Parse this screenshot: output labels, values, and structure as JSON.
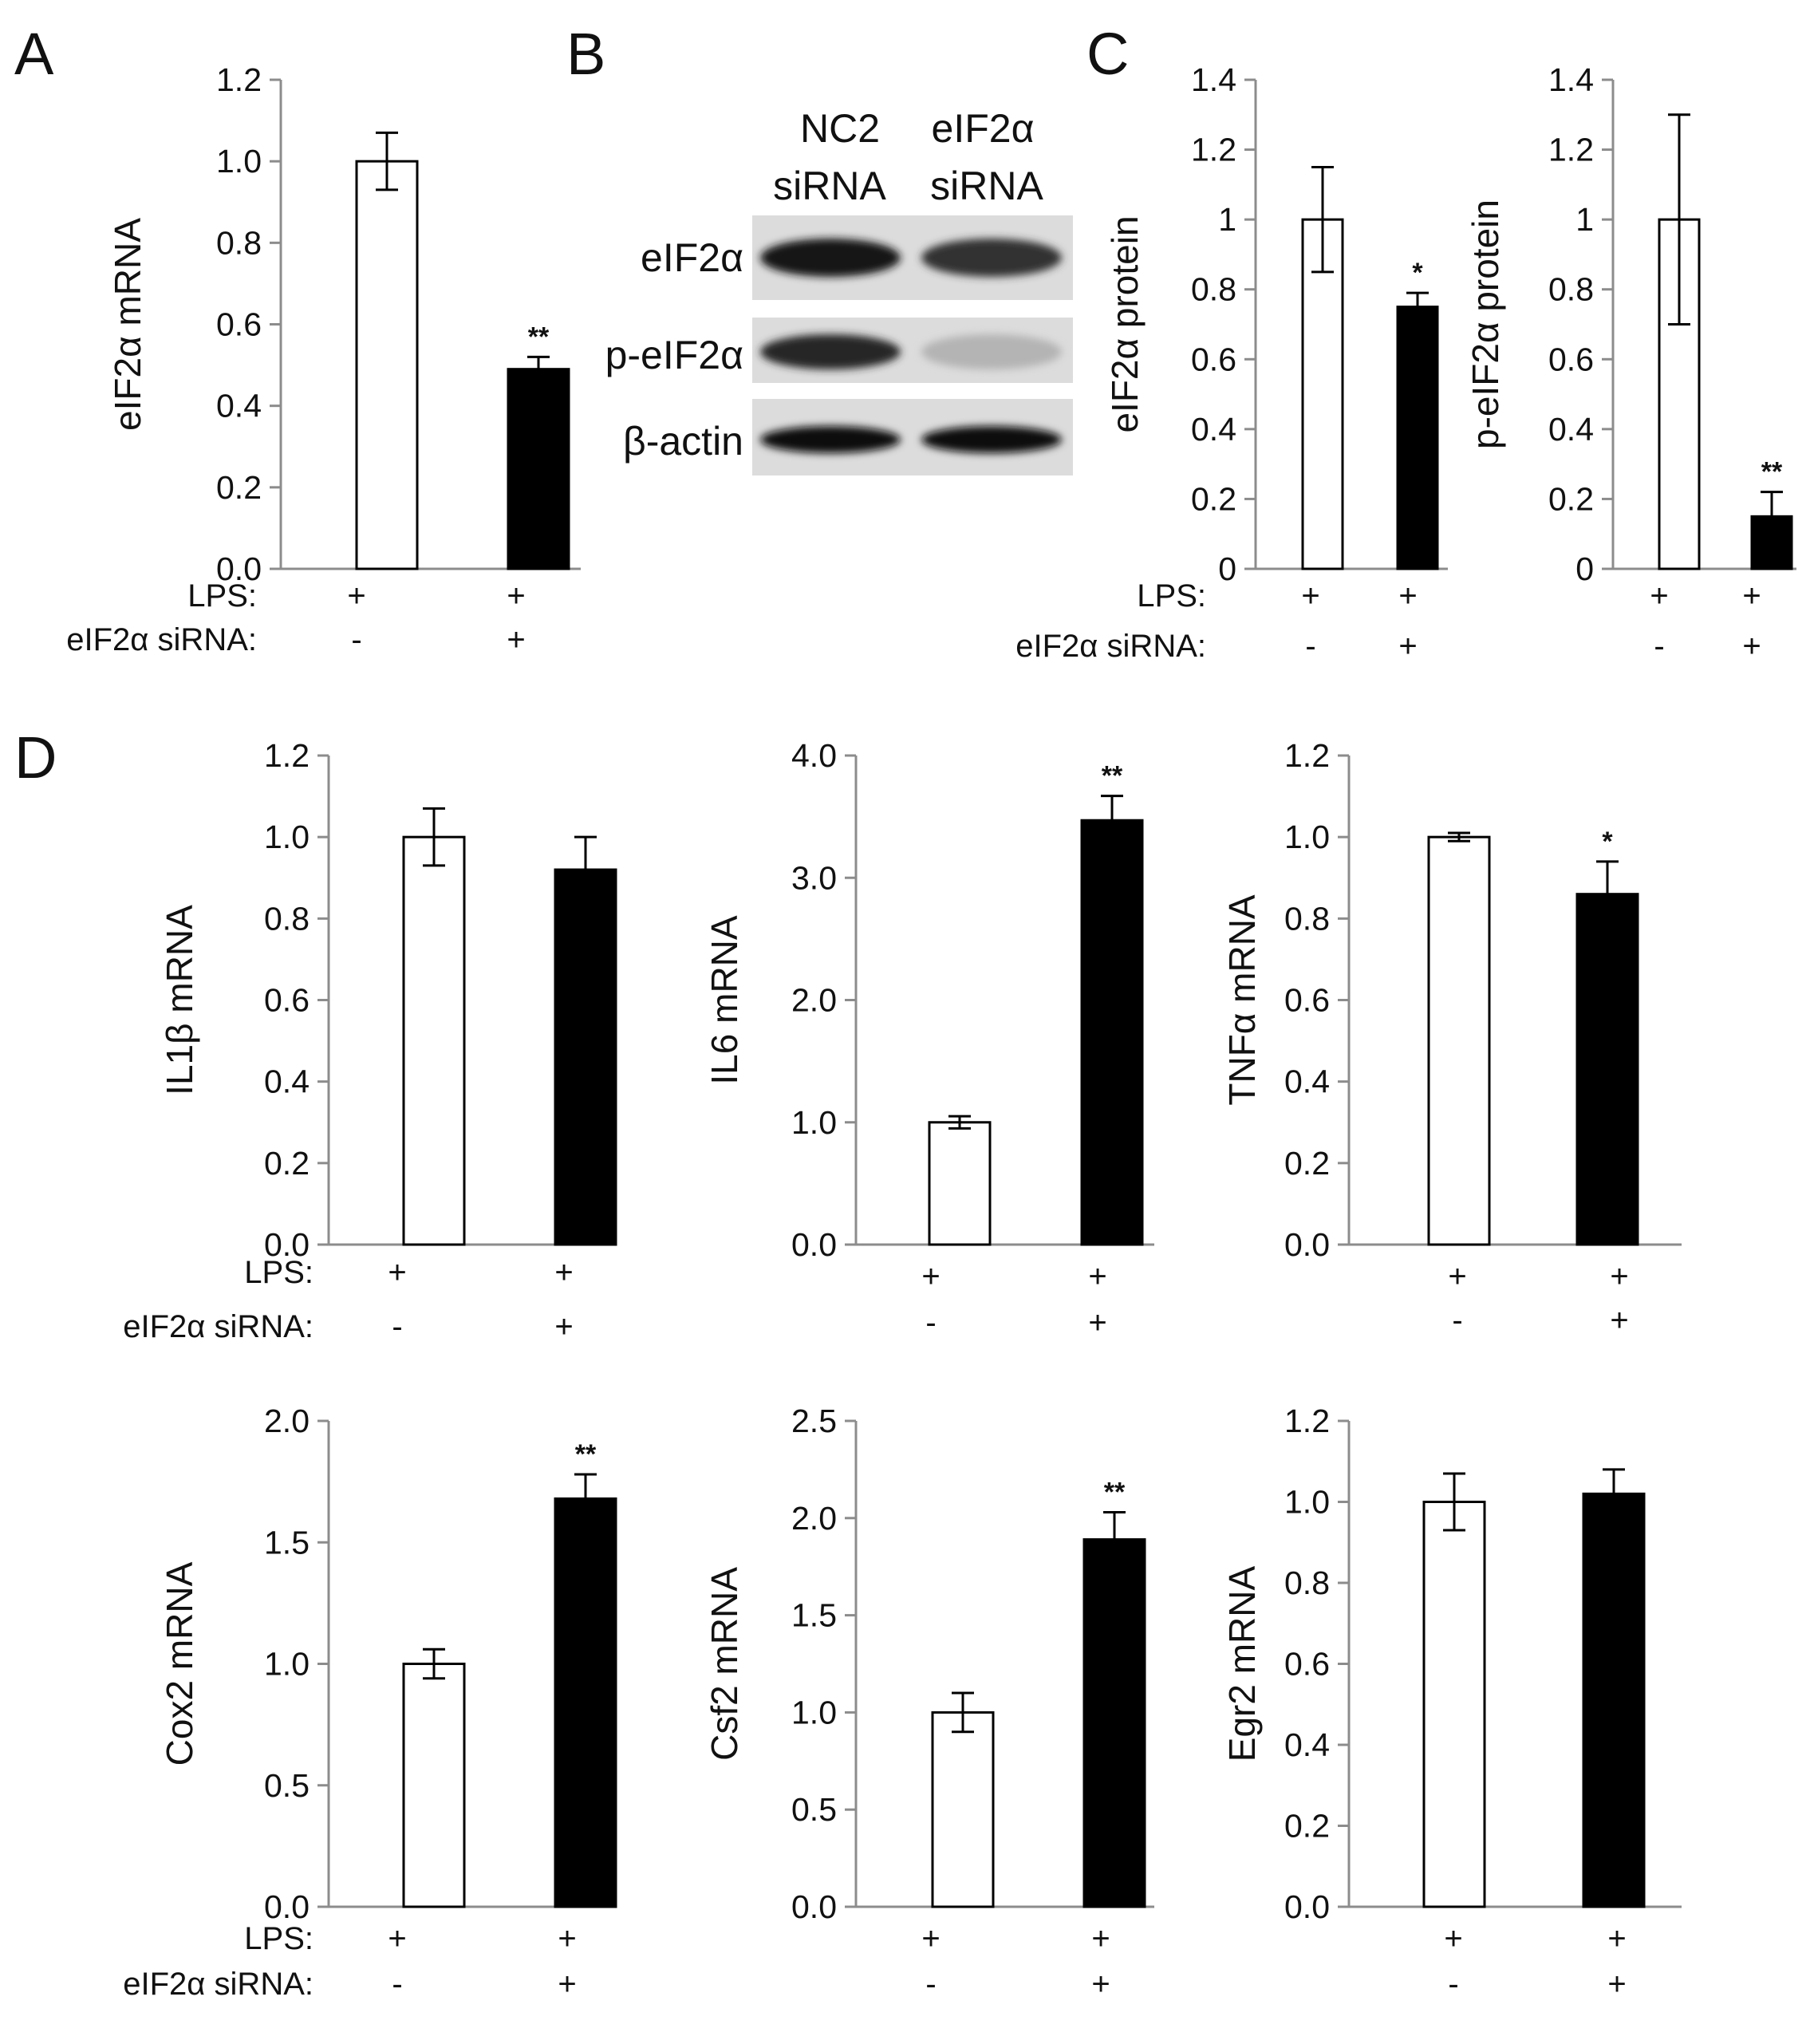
{
  "colors": {
    "control_bar": "#ffffff",
    "sirna_bar": "#000000",
    "axis": "#8c8c8c",
    "text": "#111111"
  },
  "panel_letters": [
    "A",
    "B",
    "C",
    "D"
  ],
  "chart_data": [
    {
      "id": "A",
      "type": "bar",
      "ylabel": "eIF2α mRNA",
      "yticks": [
        "0.0",
        "0.2",
        "0.4",
        "0.6",
        "0.8",
        "1.0",
        "1.2"
      ],
      "ylim": [
        0,
        1.2
      ],
      "values": [
        1.0,
        0.49
      ],
      "errors": [
        0.07,
        0.03
      ],
      "significance": [
        "",
        "**"
      ],
      "rows": [
        {
          "label": "LPS:",
          "marks": [
            "+",
            "+"
          ]
        },
        {
          "label": "eIF2α siRNA:",
          "marks": [
            "-",
            "+"
          ]
        }
      ]
    },
    {
      "id": "C1",
      "type": "bar",
      "ylabel": "eIF2α protein",
      "yticks": [
        "0",
        "0.2",
        "0.4",
        "0.6",
        "0.8",
        "1",
        "1.2",
        "1.4"
      ],
      "ylim": [
        0,
        1.4
      ],
      "values": [
        1.0,
        0.75
      ],
      "errors": [
        0.15,
        0.04
      ],
      "significance": [
        "",
        "*"
      ],
      "rows": [
        {
          "label": "LPS:",
          "marks": [
            "+",
            "+"
          ]
        },
        {
          "label": "eIF2α siRNA:",
          "marks": [
            "-",
            "+"
          ]
        }
      ]
    },
    {
      "id": "C2",
      "type": "bar",
      "ylabel": "p-eIF2α protein",
      "yticks": [
        "0",
        "0.2",
        "0.4",
        "0.6",
        "0.8",
        "1",
        "1.2",
        "1.4"
      ],
      "ylim": [
        0,
        1.4
      ],
      "values": [
        1.0,
        0.15
      ],
      "errors": [
        0.3,
        0.07
      ],
      "significance": [
        "",
        "**"
      ],
      "rows": [
        {
          "label": "",
          "marks": [
            "+",
            "+"
          ]
        },
        {
          "label": "",
          "marks": [
            "-",
            "+"
          ]
        }
      ]
    },
    {
      "id": "D1",
      "type": "bar",
      "ylabel": "IL1β mRNA",
      "yticks": [
        "0.0",
        "0.2",
        "0.4",
        "0.6",
        "0.8",
        "1.0",
        "1.2"
      ],
      "ylim": [
        0,
        1.2
      ],
      "values": [
        1.0,
        0.92
      ],
      "errors": [
        0.07,
        0.08
      ],
      "significance": [
        "",
        ""
      ],
      "rows": [
        {
          "label": "LPS:",
          "marks": [
            "+",
            "+"
          ]
        },
        {
          "label": "eIF2α siRNA:",
          "marks": [
            "-",
            "+"
          ]
        }
      ]
    },
    {
      "id": "D2",
      "type": "bar",
      "ylabel": "IL6 mRNA",
      "yticks": [
        "0.0",
        "1.0",
        "2.0",
        "3.0",
        "4.0"
      ],
      "ylim": [
        0,
        4.0
      ],
      "values": [
        1.0,
        3.47
      ],
      "errors": [
        0.05,
        0.2
      ],
      "significance": [
        "",
        "**"
      ],
      "rows": [
        {
          "label": "",
          "marks": [
            "+",
            "+"
          ]
        },
        {
          "label": "",
          "marks": [
            "-",
            "+"
          ]
        }
      ]
    },
    {
      "id": "D3",
      "type": "bar",
      "ylabel": "TNFα mRNA",
      "yticks": [
        "0.0",
        "0.2",
        "0.4",
        "0.6",
        "0.8",
        "1.0",
        "1.2"
      ],
      "ylim": [
        0,
        1.2
      ],
      "values": [
        1.0,
        0.86
      ],
      "errors": [
        0.01,
        0.08
      ],
      "significance": [
        "",
        "*"
      ],
      "rows": [
        {
          "label": "",
          "marks": [
            "+",
            "+"
          ]
        },
        {
          "label": "",
          "marks": [
            "-",
            "+"
          ]
        }
      ]
    },
    {
      "id": "D4",
      "type": "bar",
      "ylabel": "Cox2 mRNA",
      "yticks": [
        "0.0",
        "0.5",
        "1.0",
        "1.5",
        "2.0"
      ],
      "ylim": [
        0,
        2.0
      ],
      "values": [
        1.0,
        1.68
      ],
      "errors": [
        0.06,
        0.1
      ],
      "significance": [
        "",
        "**"
      ],
      "rows": [
        {
          "label": "LPS:",
          "marks": [
            "+",
            "+"
          ]
        },
        {
          "label": "eIF2α siRNA:",
          "marks": [
            "-",
            "+"
          ]
        }
      ]
    },
    {
      "id": "D5",
      "type": "bar",
      "ylabel": "Csf2 mRNA",
      "yticks": [
        "0.0",
        "0.5",
        "1.0",
        "1.5",
        "2.0",
        "2.5"
      ],
      "ylim": [
        0,
        2.5
      ],
      "values": [
        1.0,
        1.89
      ],
      "errors": [
        0.1,
        0.14
      ],
      "significance": [
        "",
        "**"
      ],
      "rows": [
        {
          "label": "",
          "marks": [
            "+",
            "+"
          ]
        },
        {
          "label": "",
          "marks": [
            "-",
            "+"
          ]
        }
      ]
    },
    {
      "id": "D6",
      "type": "bar",
      "ylabel": "Egr2 mRNA",
      "yticks": [
        "0.0",
        "0.2",
        "0.4",
        "0.6",
        "0.8",
        "1.0",
        "1.2"
      ],
      "ylim": [
        0,
        1.2
      ],
      "values": [
        1.0,
        1.02
      ],
      "errors": [
        0.07,
        0.06
      ],
      "significance": [
        "",
        ""
      ],
      "rows": [
        {
          "label": "",
          "marks": [
            "+",
            "+"
          ]
        },
        {
          "label": "",
          "marks": [
            "-",
            "+"
          ]
        }
      ]
    }
  ],
  "blot": {
    "columns": [
      {
        "line1": "NC2",
        "line2": "siRNA"
      },
      {
        "line1": "eIF2α",
        "line2": "siRNA"
      }
    ],
    "rows": [
      {
        "label": "eIF2α",
        "intensity": [
          0.95,
          0.8
        ]
      },
      {
        "label": "p-eIF2α",
        "intensity": [
          0.85,
          0.15
        ]
      },
      {
        "label": "β-actin",
        "intensity": [
          1.0,
          1.0
        ]
      }
    ]
  }
}
